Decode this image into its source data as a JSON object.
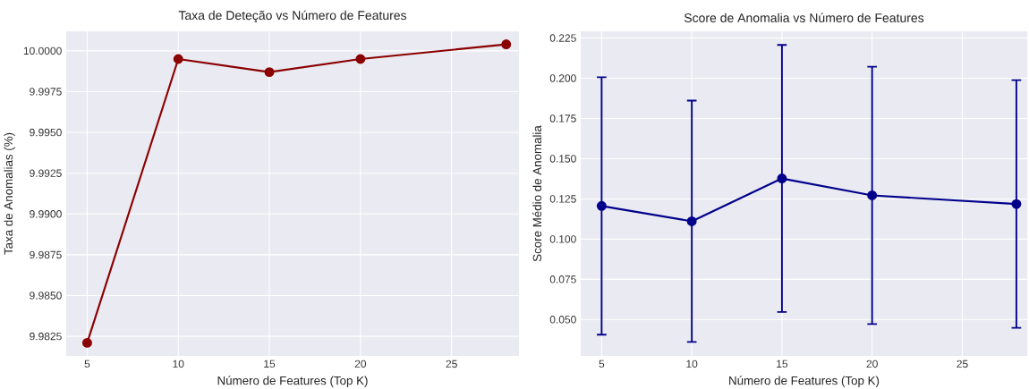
{
  "chart_data": [
    {
      "type": "line",
      "title": "Taxa de Deteção vs Número de Features",
      "xlabel": "Número de Features (Top K)",
      "ylabel": "Taxa de Anomalias (%)",
      "x": [
        5,
        10,
        15,
        20,
        28
      ],
      "series": [
        {
          "color": "#8b0000",
          "values": [
            9.9821,
            9.9995,
            9.9987,
            9.9995,
            10.0004
          ]
        }
      ],
      "xlim": [
        3.85,
        28.7
      ],
      "ylim": [
        9.9813,
        10.0012
      ],
      "xticks": [
        5,
        10,
        15,
        20,
        25
      ],
      "yticks": [
        9.9825,
        {
          "value": 9.985,
          "label": "9.9850"
        },
        9.9875,
        {
          "value": 9.99,
          "label": "9.9900"
        },
        9.9925,
        {
          "value": 9.995,
          "label": "9.9950"
        },
        9.9975,
        {
          "value": 10,
          "label": "10.0000"
        }
      ],
      "grid": true,
      "marker": "circle"
    },
    {
      "type": "line",
      "title": "Score de Anomalia vs Número de Features",
      "xlabel": "Número de Features (Top K)",
      "ylabel": "Score Médio de Anomalia",
      "x": [
        5,
        10,
        15,
        20,
        28
      ],
      "series": [
        {
          "color": "#00008b",
          "values": [
            0.1206,
            0.1111,
            0.1377,
            0.1272,
            0.1218
          ],
          "errors": [
            0.08,
            0.075,
            0.083,
            0.08,
            0.077
          ]
        }
      ],
      "xlim": [
        3.84,
        28.6
      ],
      "ylim": [
        0.0274,
        0.2292
      ],
      "xticks": [
        5,
        10,
        15,
        20,
        25
      ],
      "yticks": [
        {
          "value": 0.05,
          "label": "0.050"
        },
        0.075,
        {
          "value": 0.1,
          "label": "0.100"
        },
        0.125,
        {
          "value": 0.15,
          "label": "0.150"
        },
        0.175,
        {
          "value": 0.2,
          "label": "0.200"
        },
        0.225
      ],
      "grid": true,
      "marker": "circle"
    }
  ]
}
